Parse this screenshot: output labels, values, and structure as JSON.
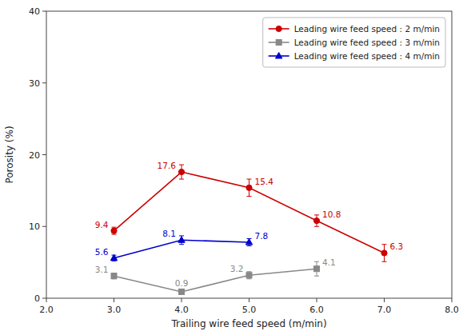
{
  "chart_data": {
    "type": "line",
    "xlabel": "Trailing wire feed speed (m/min)",
    "ylabel": "Porosity (%)",
    "xlim": [
      2.0,
      8.0
    ],
    "ylim": [
      0,
      40
    ],
    "xticks": [
      {
        "value": 2.0,
        "label": "2.0"
      },
      {
        "value": 3.0,
        "label": "3.0"
      },
      {
        "value": 4.0,
        "label": "4.0"
      },
      {
        "value": 5.0,
        "label": "5.0"
      },
      {
        "value": 6.0,
        "label": "6.0"
      },
      {
        "value": 7.0,
        "label": "7.0"
      },
      {
        "value": 8.0,
        "label": "8.0"
      }
    ],
    "yticks": [
      0,
      10,
      20,
      30,
      40
    ],
    "grid": false,
    "legend": "upper right",
    "data_labels": true,
    "series": [
      {
        "name": "Leading wire feed speed : 2 m/min",
        "color": "#cc0000",
        "marker": "circle",
        "x": [
          3.0,
          4.0,
          5.0,
          6.0,
          7.0
        ],
        "values": [
          9.4,
          17.6,
          15.4,
          10.8,
          6.3
        ],
        "errors": [
          0.5,
          1.0,
          1.2,
          0.8,
          1.2
        ]
      },
      {
        "name": "Leading wire feed speed : 3 m/min",
        "color": "#888888",
        "marker": "square",
        "x": [
          3.0,
          4.0,
          5.0,
          6.0
        ],
        "values": [
          3.1,
          0.9,
          3.2,
          4.1
        ],
        "errors": [
          0.4,
          0.3,
          0.5,
          1.0
        ]
      },
      {
        "name": "Leading wire feed speed : 4 m/min",
        "color": "#0000cc",
        "marker": "triangle",
        "x": [
          3.0,
          4.0,
          5.0
        ],
        "values": [
          5.6,
          8.1,
          7.8
        ],
        "errors": [
          0.4,
          0.6,
          0.5
        ]
      }
    ]
  }
}
